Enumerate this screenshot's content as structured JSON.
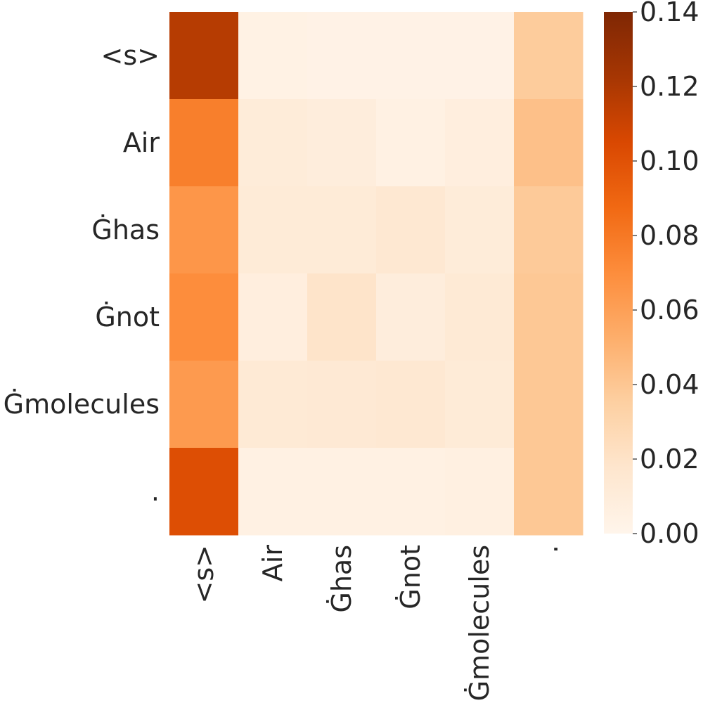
{
  "chart_data": {
    "type": "heatmap",
    "title": "",
    "xlabel": "",
    "ylabel": "",
    "x_labels": [
      "<s>",
      "Air",
      "Ġhas",
      "Ġnot",
      "Ġmolecules",
      "."
    ],
    "y_labels": [
      "<s>",
      "Air",
      "Ġhas",
      "Ġnot",
      "Ġmolecules",
      "."
    ],
    "values": [
      [
        0.117,
        0.004,
        0.003,
        0.003,
        0.003,
        0.037
      ],
      [
        0.077,
        0.011,
        0.009,
        0.005,
        0.008,
        0.043
      ],
      [
        0.065,
        0.012,
        0.012,
        0.015,
        0.011,
        0.038
      ],
      [
        0.07,
        0.008,
        0.019,
        0.009,
        0.013,
        0.039
      ],
      [
        0.063,
        0.013,
        0.014,
        0.015,
        0.012,
        0.039
      ],
      [
        0.102,
        0.005,
        0.005,
        0.005,
        0.006,
        0.039
      ]
    ],
    "colormap": "Oranges",
    "colorbar": {
      "range": [
        0.0,
        0.14
      ],
      "ticks": [
        "0.00",
        "0.02",
        "0.04",
        "0.06",
        "0.08",
        "0.10",
        "0.12",
        "0.14"
      ]
    }
  }
}
